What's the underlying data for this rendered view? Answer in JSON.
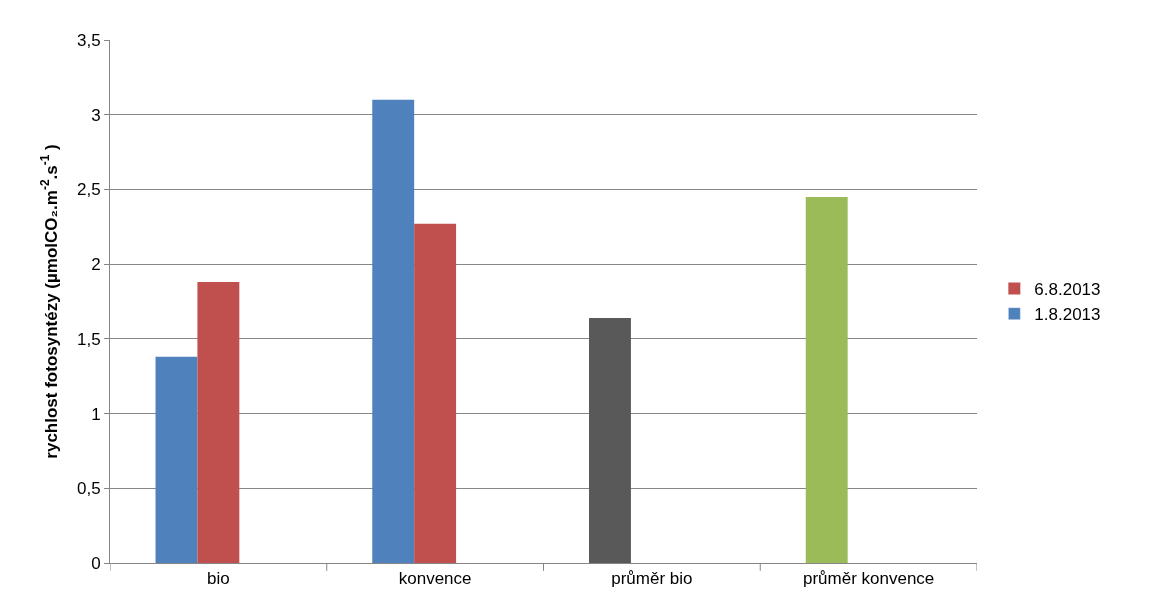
{
  "chart_data": {
    "type": "bar",
    "ylabel": "rychlost fotosyntézy (µmolCO₂.m$^{-2}$.s$^{-1}$ )",
    "categories": [
      "bio",
      "konvence",
      "průměr bio",
      "průměr konvence"
    ],
    "series": [
      {
        "name": "1.8.2013",
        "color": "#4f81bd",
        "colors": [
          "#4f81bd",
          "#4f81bd",
          "#595959",
          "#9bbb59"
        ],
        "values": [
          1.38,
          3.1,
          1.64,
          2.45
        ]
      },
      {
        "name": "6.8.2013",
        "color": "#c0504d",
        "values": [
          1.88,
          2.27,
          null,
          null
        ]
      }
    ],
    "ylim": [
      0,
      3.5
    ],
    "yticks": [
      0,
      {
        "value": 0.5,
        "label": "0,5"
      },
      1,
      {
        "value": 1.5,
        "label": "1,5"
      },
      2,
      {
        "value": 2.5,
        "label": "2,5"
      },
      3,
      {
        "value": 3.5,
        "label": "3,5"
      }
    ],
    "grid": "y",
    "legend": "right"
  }
}
